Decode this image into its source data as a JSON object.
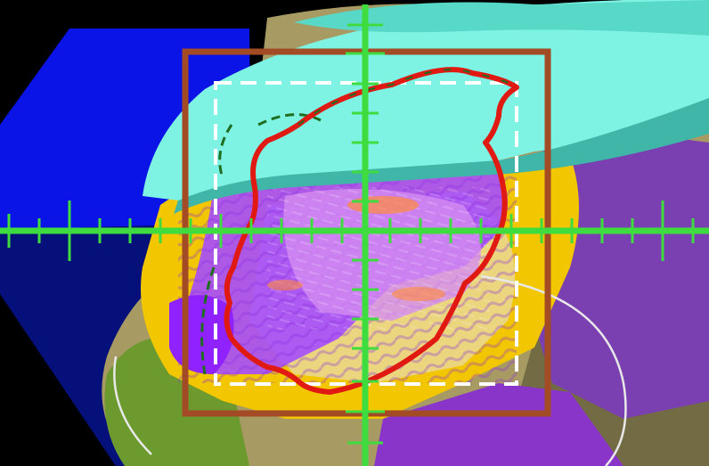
{
  "scene": {
    "colors": {
      "background": "#000000",
      "blue_plane": "#0a14e6",
      "dark_blue_plane": "#06107a",
      "cyan_surface": "#7ff3e3",
      "cyan_shadow": "#3fb6a8",
      "purple_surface": "#7a3fb0",
      "violet_region": "#a64dff",
      "pink_region": "#d48cf0",
      "yellow_region": "#f2c600",
      "beige_region": "#d8c28a",
      "green_region": "#6d9a2e",
      "tan_surface": "#a79a63",
      "crosshair": "#3fdc3f",
      "target_box": "#a24b25",
      "contour": "#e01a12",
      "dashed_box": "#ffffff",
      "white_curve": "#e8e8e8"
    },
    "overlays": {
      "crosshair_visible": true,
      "target_box_visible": true,
      "dashed_box_visible": true,
      "contour_visible": true
    }
  }
}
